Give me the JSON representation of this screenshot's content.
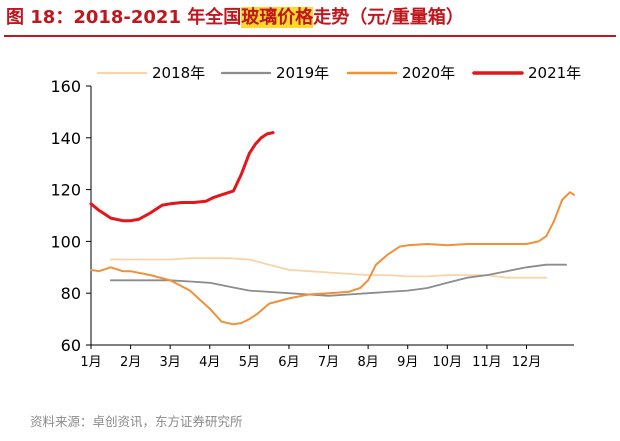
{
  "figure": {
    "label": "图 18：2018-2021 年全国",
    "highlight": "玻璃价格",
    "suffix": "走势（元/重量箱）",
    "source": "资料来源：卓创资讯，东方证券研究所"
  },
  "colors": {
    "title": "#c0161d",
    "highlight": "#ffd92e",
    "axis": "#000000",
    "source": "#8a8a8a"
  },
  "chart_data": {
    "type": "line",
    "title": "图 18：2018-2021 年全国玻璃价格走势（元/重量箱）",
    "xlabel": "",
    "ylabel": "",
    "ylim": [
      60,
      160
    ],
    "yticks": [
      60,
      80,
      100,
      120,
      140,
      160
    ],
    "xlim": [
      0,
      12.2
    ],
    "xtick_labels": [
      "1月",
      "2月",
      "3月",
      "4月",
      "5月",
      "6月",
      "7月",
      "8月",
      "9月",
      "10月",
      "11月",
      "12月"
    ],
    "grid": false,
    "legend_position": "top",
    "series": [
      {
        "name": "2018年",
        "color": "#f8d4a6",
        "width": 1.8,
        "x": [
          0.5,
          1.0,
          1.5,
          2.0,
          2.5,
          3.0,
          3.5,
          4.0,
          4.5,
          5.0,
          5.5,
          6.0,
          6.5,
          7.0,
          7.5,
          8.0,
          8.5,
          9.0,
          9.5,
          10.0,
          10.5,
          11.0,
          11.5
        ],
        "y": [
          93,
          93,
          93,
          93,
          93.5,
          93.5,
          93.5,
          93,
          91,
          89,
          88.5,
          88,
          87.5,
          87,
          87,
          86.5,
          86.5,
          87,
          87,
          87,
          86,
          86,
          86
        ]
      },
      {
        "name": "2019年",
        "color": "#8c8c8c",
        "width": 1.8,
        "x": [
          0.5,
          1.0,
          1.5,
          2.0,
          2.5,
          3.0,
          3.5,
          4.0,
          4.5,
          5.0,
          5.5,
          6.0,
          6.5,
          7.0,
          7.5,
          8.0,
          8.5,
          9.0,
          9.5,
          10.0,
          10.5,
          11.0,
          11.5,
          12.0
        ],
        "y": [
          85,
          85,
          85,
          85,
          84.5,
          84,
          82.5,
          81,
          80.5,
          80,
          79.5,
          79,
          79.5,
          80,
          80.5,
          81,
          82,
          84,
          86,
          87,
          88.5,
          90,
          91,
          91
        ]
      },
      {
        "name": "2020年",
        "color": "#f0913a",
        "width": 2,
        "x": [
          0,
          0.2,
          0.5,
          0.8,
          1.0,
          1.5,
          2.0,
          2.5,
          3.0,
          3.3,
          3.6,
          3.8,
          4.0,
          4.2,
          4.5,
          5.0,
          5.5,
          6.0,
          6.5,
          6.8,
          7.0,
          7.2,
          7.5,
          7.8,
          8.0,
          8.5,
          9.0,
          9.5,
          10.0,
          10.5,
          11.0,
          11.3,
          11.5,
          11.7,
          11.9,
          12.1,
          12.2
        ],
        "y": [
          89,
          88.5,
          90,
          88.5,
          88.5,
          87,
          85,
          81,
          74,
          69,
          68,
          68.5,
          70,
          72,
          76,
          78,
          79.5,
          80,
          80.5,
          82,
          85,
          91,
          95,
          98,
          98.5,
          99,
          98.5,
          99,
          99,
          99,
          99,
          100,
          102,
          108,
          116,
          119,
          118
        ]
      },
      {
        "name": "2021年",
        "color": "#e3161b",
        "width": 3,
        "x": [
          0,
          0.2,
          0.5,
          0.8,
          1.0,
          1.2,
          1.5,
          1.8,
          2.0,
          2.3,
          2.6,
          2.9,
          3.1,
          3.3,
          3.6,
          3.8,
          4.0,
          4.15,
          4.3,
          4.45,
          4.6
        ],
        "y": [
          114.5,
          112,
          109,
          108,
          108,
          108.5,
          111,
          114,
          114.5,
          115,
          115,
          115.5,
          117,
          118,
          119.5,
          126,
          134,
          137.5,
          140,
          141.5,
          142
        ]
      }
    ]
  }
}
